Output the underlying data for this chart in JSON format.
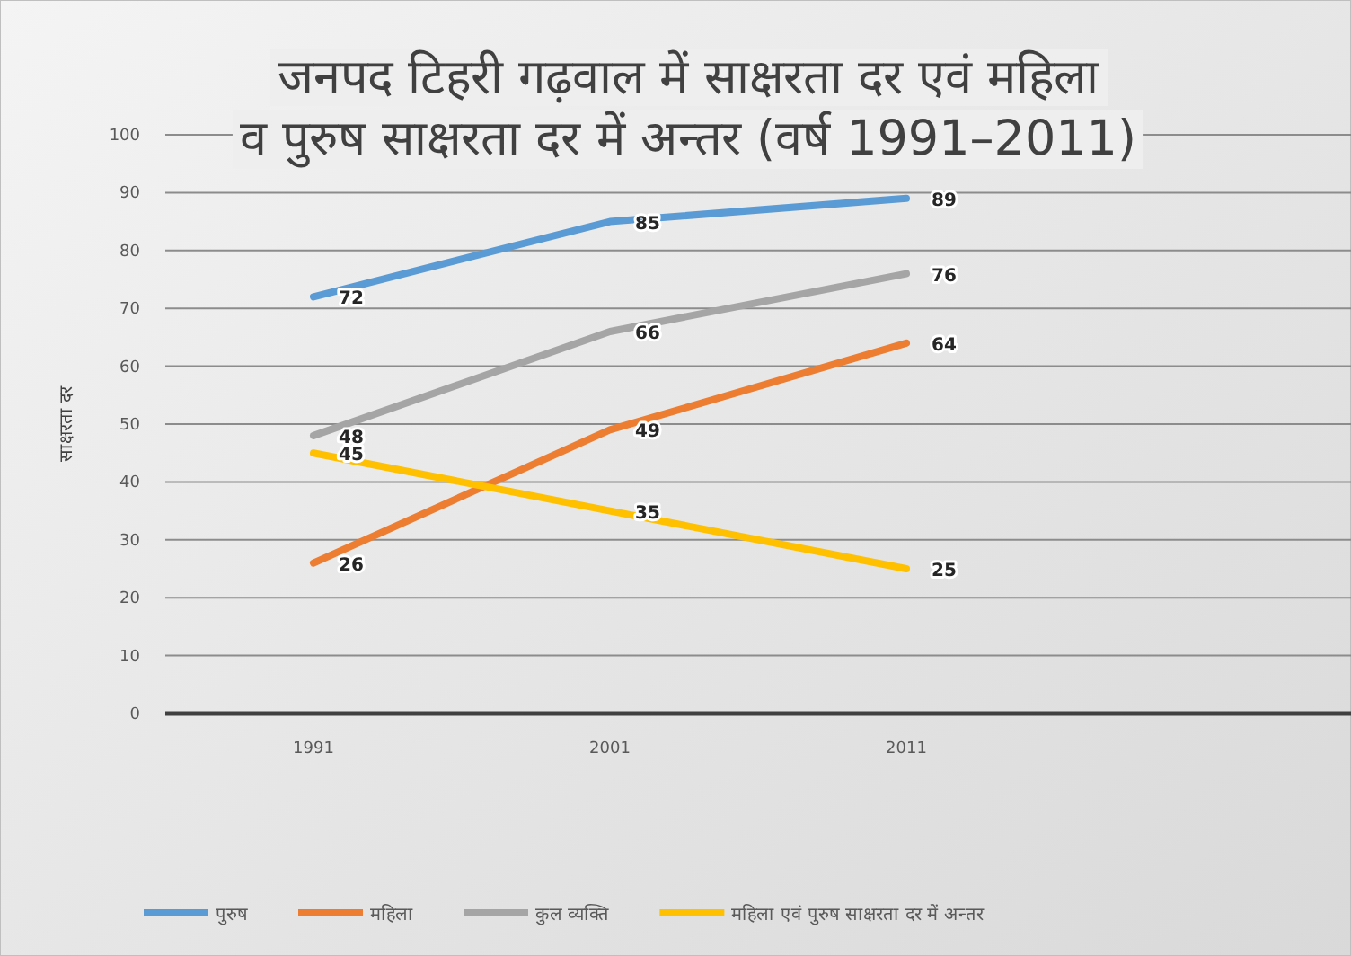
{
  "chart_data": {
    "type": "line",
    "title": "जनपद टिहरी गढ़वाल में साक्षरता दर एवं महिला\nव पुरुष साक्षरता दर में अन्तर (वर्ष 1991–2011)",
    "ylabel": "साक्षरता दर",
    "categories": [
      "1991",
      "2001",
      "2011",
      null
    ],
    "ylim": [
      0,
      100
    ],
    "yticks": [
      0,
      10,
      20,
      30,
      40,
      50,
      60,
      70,
      80,
      90,
      100
    ],
    "grid": "y",
    "legend": "bottom",
    "marker": "none",
    "line_style": "solid",
    "data_labels": true,
    "series": [
      {
        "name": "पुरुष",
        "color": "#5b9bd5",
        "values": [
          72,
          85,
          89,
          null
        ]
      },
      {
        "name": "महिला",
        "color": "#ed7d31",
        "values": [
          26,
          49,
          64,
          null
        ]
      },
      {
        "name": "कुल व्यक्ति",
        "color": "#a5a5a5",
        "values": [
          48,
          66,
          76,
          null
        ]
      },
      {
        "name": "महिला एवं पुरुष साक्षरता दर में अन्तर",
        "color": "#ffc000",
        "values": [
          45,
          35,
          25,
          null
        ]
      }
    ]
  }
}
